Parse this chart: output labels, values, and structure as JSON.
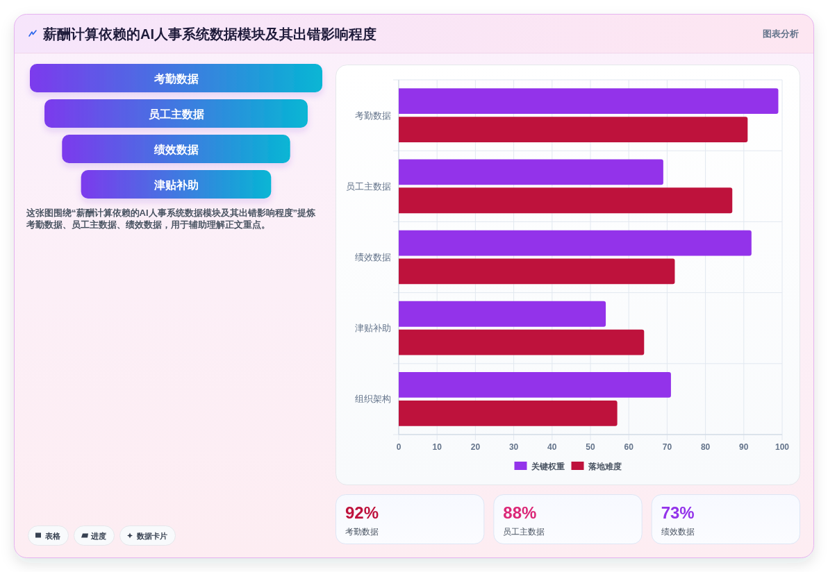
{
  "chart_data": [
    {
      "type": "other",
      "title": "薪酬计算依赖的AI人事系统数据模块及其出错影响程度",
      "subtitle": "图表分析",
      "categories": [
        "考勤数据",
        "员工主数据",
        "绩效数据",
        "津贴补助"
      ],
      "annotations": [
        "这张图围绕“薪酬计算依赖的AI人事系统数据模块及其出错影响程度”提炼考勤数据、员工主数据、绩效数据，用于辅助理解正文重点。",
        "表格",
        "进度",
        "数据卡片"
      ]
    },
    {
      "type": "bar",
      "orientation": "horizontal",
      "categories": [
        "考勤数据",
        "员工主数据",
        "绩效数据",
        "津贴补助",
        "组织架构"
      ],
      "series": [
        {
          "name": "关键权重",
          "color": "#9333ea",
          "values": [
            99,
            69,
            92,
            54,
            71
          ]
        },
        {
          "name": "落地难度",
          "color": "#be123c",
          "values": [
            91,
            87,
            72,
            64,
            57
          ]
        }
      ],
      "xlim": [
        0,
        100
      ],
      "xticks": [
        0,
        10,
        20,
        30,
        40,
        50,
        60,
        70,
        80,
        90,
        100
      ],
      "grid": true,
      "legend": "bottom"
    },
    {
      "type": "other",
      "annotations": [
        "92%",
        "考勤数据",
        "88%",
        "员工主数据",
        "73%",
        "绩效数据"
      ]
    }
  ]
}
